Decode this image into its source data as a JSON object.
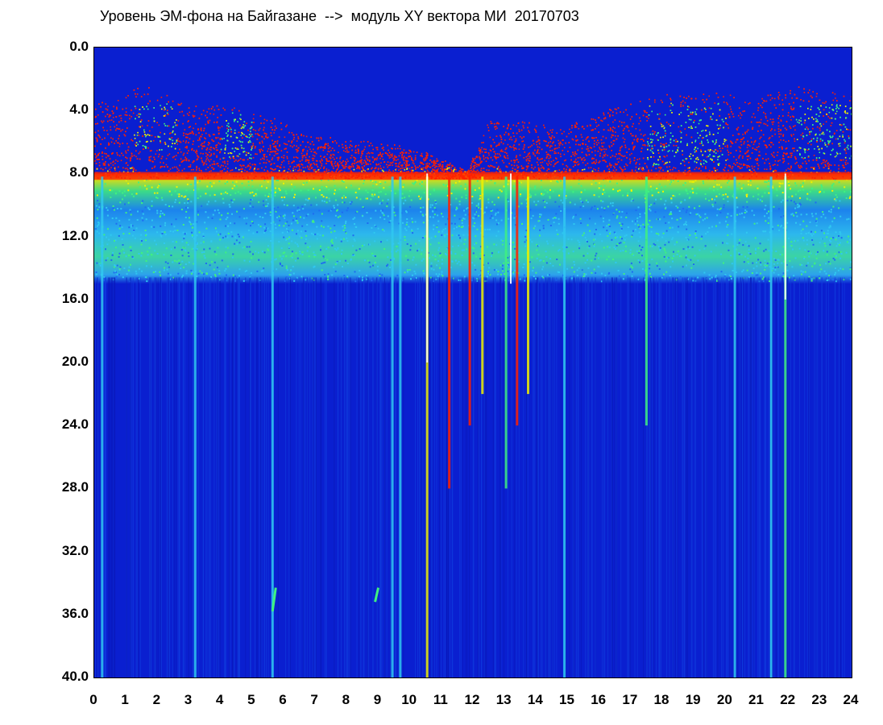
{
  "chart_data": {
    "type": "heatmap",
    "title": "Уровень ЭМ-фона на Байгазане  -->  модуль XY вектора МИ  20170703",
    "xlabel": "",
    "ylabel": "",
    "xlim": [
      0,
      24
    ],
    "ylim": [
      0,
      40
    ],
    "y_inverted": true,
    "x_ticks": [
      "0",
      "1",
      "2",
      "3",
      "4",
      "5",
      "6",
      "7",
      "8",
      "9",
      "10",
      "11",
      "12",
      "13",
      "14",
      "15",
      "16",
      "17",
      "18",
      "19",
      "20",
      "21",
      "22",
      "23",
      "24"
    ],
    "y_ticks": [
      "0.0",
      "4.0",
      "8.0",
      "12.0",
      "16.0",
      "20.0",
      "24.0",
      "28.0",
      "32.0",
      "36.0",
      "40.0"
    ],
    "colormap": [
      "#0a1fd0",
      "#1e6cf0",
      "#30c8f0",
      "#40f080",
      "#f0f000",
      "#ff2000"
    ],
    "background": "#0a1fd0",
    "bands": [
      {
        "name": "",
        "y_from": 2.5,
        "y_to": 8.2,
        "level": "red-yellow-green (sparse)"
      },
      {
        "name": "",
        "y_from": 8.2,
        "y_to": 9.8,
        "level": "green-yellow"
      },
      {
        "name": "",
        "y_from": 9.8,
        "y_to": 14.6,
        "level": "cyan-green"
      },
      {
        "name": "",
        "y_from": 14.6,
        "y_to": 40,
        "level": "blue"
      }
    ],
    "upper_band_top": [
      {
        "x": 0.0,
        "y": 3.0
      },
      {
        "x": 0.5,
        "y": 3.5
      },
      {
        "x": 1.2,
        "y": 2.3
      },
      {
        "x": 2.0,
        "y": 2.6
      },
      {
        "x": 3.0,
        "y": 3.5
      },
      {
        "x": 4.0,
        "y": 3.6
      },
      {
        "x": 5.0,
        "y": 4.0
      },
      {
        "x": 6.0,
        "y": 4.6
      },
      {
        "x": 7.0,
        "y": 5.5
      },
      {
        "x": 8.0,
        "y": 5.8
      },
      {
        "x": 9.0,
        "y": 6.0
      },
      {
        "x": 10.0,
        "y": 6.2
      },
      {
        "x": 11.0,
        "y": 7.0
      },
      {
        "x": 11.8,
        "y": 7.8
      },
      {
        "x": 12.5,
        "y": 4.5
      },
      {
        "x": 13.5,
        "y": 4.5
      },
      {
        "x": 14.5,
        "y": 5.0
      },
      {
        "x": 15.5,
        "y": 4.5
      },
      {
        "x": 16.5,
        "y": 3.6
      },
      {
        "x": 17.5,
        "y": 3.2
      },
      {
        "x": 18.5,
        "y": 2.8
      },
      {
        "x": 19.5,
        "y": 2.6
      },
      {
        "x": 20.5,
        "y": 3.2
      },
      {
        "x": 21.5,
        "y": 2.6
      },
      {
        "x": 22.5,
        "y": 2.3
      },
      {
        "x": 24.0,
        "y": 2.6
      }
    ],
    "green_hotspots": [
      {
        "x_from": 1.2,
        "x_to": 2.6,
        "y_from": 3.5,
        "y_to": 6.5
      },
      {
        "x_from": 4.0,
        "x_to": 5.0,
        "y_from": 4.0,
        "y_to": 7.0
      },
      {
        "x_from": 17.5,
        "x_to": 20.0,
        "y_from": 3.5,
        "y_to": 7.5
      },
      {
        "x_from": 22.2,
        "x_to": 24.0,
        "y_from": 3.5,
        "y_to": 7.0
      }
    ],
    "vertical_streaks": [
      {
        "x": 0.25,
        "y_to": 40,
        "color": "#30c8f0"
      },
      {
        "x": 3.2,
        "y_to": 40,
        "color": "#30c8f0"
      },
      {
        "x": 5.65,
        "y_to": 40,
        "color": "#30c8f0"
      },
      {
        "x": 9.45,
        "y_to": 40,
        "color": "#30c8f0"
      },
      {
        "x": 9.7,
        "y_to": 40,
        "color": "#30c8f0"
      },
      {
        "x": 10.55,
        "y_to": 40,
        "color": "#f0f000"
      },
      {
        "x": 11.25,
        "y_to": 28,
        "color": "#ff2000"
      },
      {
        "x": 11.9,
        "y_to": 24,
        "color": "#ff2000"
      },
      {
        "x": 12.3,
        "y_to": 22,
        "color": "#f0f000"
      },
      {
        "x": 13.05,
        "y_to": 28,
        "color": "#40f080"
      },
      {
        "x": 13.4,
        "y_to": 24,
        "color": "#ff2000"
      },
      {
        "x": 13.75,
        "y_to": 22,
        "color": "#f0f000"
      },
      {
        "x": 14.9,
        "y_to": 40,
        "color": "#30c8f0"
      },
      {
        "x": 17.5,
        "y_to": 24,
        "color": "#40f080"
      },
      {
        "x": 20.3,
        "y_to": 40,
        "color": "#30c8f0"
      },
      {
        "x": 21.45,
        "y_to": 40,
        "color": "#30c8f0"
      },
      {
        "x": 21.9,
        "y_to": 40,
        "color": "#40f080"
      }
    ],
    "white_streaks": [
      {
        "x": 10.55,
        "y_from": 8,
        "y_to": 20
      },
      {
        "x": 13.2,
        "y_from": 8,
        "y_to": 15
      },
      {
        "x": 21.9,
        "y_from": 8,
        "y_to": 16
      }
    ],
    "isolated_marks": [
      {
        "x": 5.7,
        "y_from": 34.3,
        "y_to": 35.8,
        "color": "#40f080"
      },
      {
        "x": 8.95,
        "y_from": 34.3,
        "y_to": 35.2,
        "color": "#40f080"
      }
    ]
  }
}
